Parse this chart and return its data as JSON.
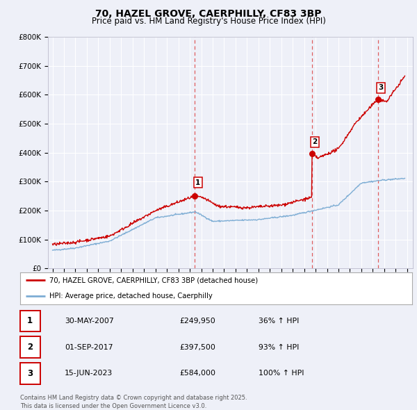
{
  "title": "70, HAZEL GROVE, CAERPHILLY, CF83 3BP",
  "subtitle": "Price paid vs. HM Land Registry's House Price Index (HPI)",
  "title_fontsize": 10,
  "subtitle_fontsize": 8.5,
  "bg_color": "#eef0f8",
  "plot_bg_color": "#eef0f8",
  "grid_color": "#ffffff",
  "red_line_color": "#cc0000",
  "blue_line_color": "#7dadd4",
  "vline_color": "#dd4444",
  "ylim": [
    0,
    800000
  ],
  "yticks": [
    0,
    100000,
    200000,
    300000,
    400000,
    500000,
    600000,
    700000,
    800000
  ],
  "ytick_labels": [
    "£0",
    "£100K",
    "£200K",
    "£300K",
    "£400K",
    "£500K",
    "£600K",
    "£700K",
    "£800K"
  ],
  "xlim_start": 1994.6,
  "xlim_end": 2026.5,
  "transaction_dates": [
    2007.41,
    2017.67,
    2023.45
  ],
  "transaction_prices": [
    249950,
    397500,
    584000
  ],
  "transaction_labels": [
    "1",
    "2",
    "3"
  ],
  "vline_dates": [
    2007.41,
    2017.67,
    2023.45
  ],
  "legend_line1": "70, HAZEL GROVE, CAERPHILLY, CF83 3BP (detached house)",
  "legend_line2": "HPI: Average price, detached house, Caerphilly",
  "table_rows": [
    {
      "num": "1",
      "date": "30-MAY-2007",
      "price": "£249,950",
      "change": "36% ↑ HPI"
    },
    {
      "num": "2",
      "date": "01-SEP-2017",
      "price": "£397,500",
      "change": "93% ↑ HPI"
    },
    {
      "num": "3",
      "date": "15-JUN-2023",
      "price": "£584,000",
      "change": "100% ↑ HPI"
    }
  ],
  "footer": "Contains HM Land Registry data © Crown copyright and database right 2025.\nThis data is licensed under the Open Government Licence v3.0."
}
